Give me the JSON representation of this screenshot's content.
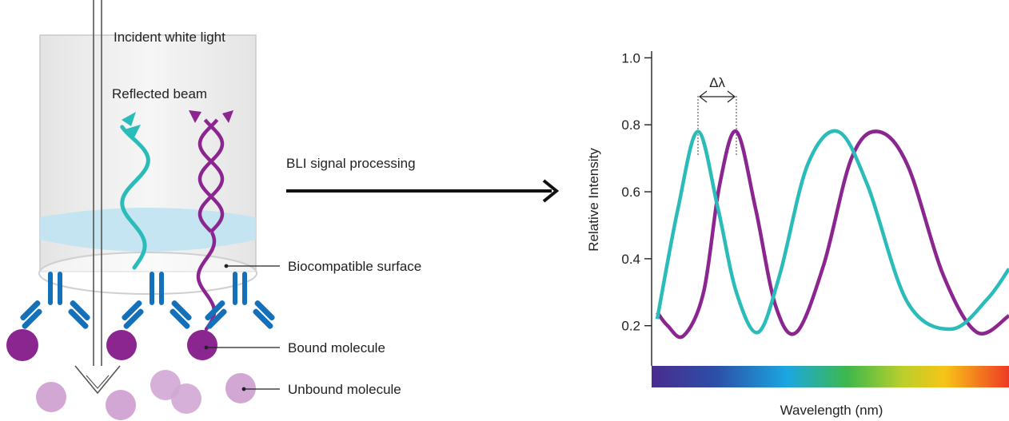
{
  "labels": {
    "incident_light": "Incident white light",
    "reflected_beam": "Reflected beam",
    "biocompatible_surface": "Biocompatible surface",
    "bound_molecule": "Bound molecule",
    "unbound_molecule": "Unbound molecule",
    "process_arrow": "BLI signal processing",
    "delta_lambda": "Δλ"
  },
  "colors": {
    "teal": "#2bbcb9",
    "purple": "#8b2590",
    "antibody_blue": "#1470b8",
    "unbound": "#d2a7d4",
    "sensor_glass": "#ececec",
    "coating": "#bfe3f1"
  },
  "chart_data": {
    "type": "line",
    "xlabel": "Wavelength (nm)",
    "ylabel": "Relative Intensity",
    "y_ticks": [
      "0.2",
      "0.4",
      "0.6",
      "0.8",
      "1.0"
    ],
    "y_tick_values": [
      0.2,
      0.4,
      0.6,
      0.8,
      1.0
    ],
    "ylim": [
      0.08,
      1.02
    ],
    "x_colorbar": "visible-spectrum",
    "series": [
      {
        "color": "#2bbcb9",
        "peaks": [
          0.78,
          0.78
        ],
        "troughs": [
          0.18,
          0.19
        ]
      },
      {
        "color": "#8b2590",
        "peaks": [
          0.78,
          0.78
        ],
        "troughs": [
          0.17,
          0.18
        ]
      }
    ]
  }
}
